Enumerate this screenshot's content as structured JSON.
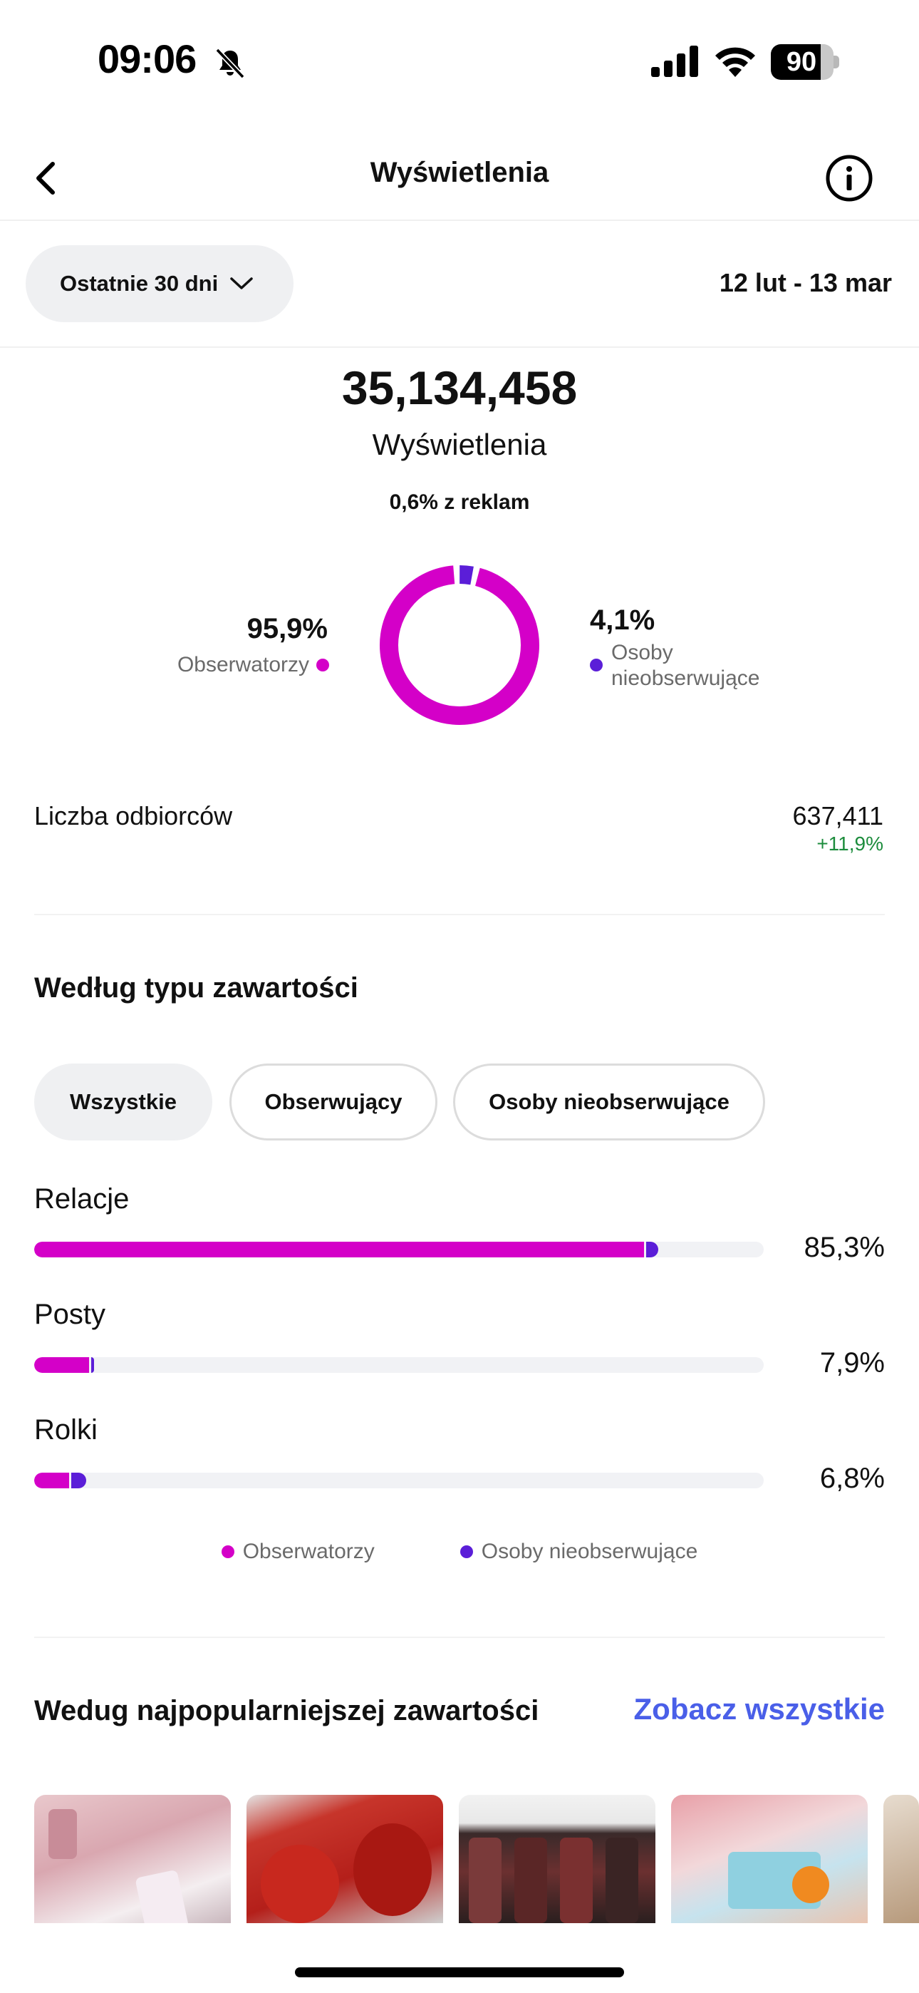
{
  "status_bar": {
    "time": "09:06",
    "battery_level": "90",
    "icons": [
      "bell-slash-icon",
      "cellular-signal-icon",
      "wifi-icon",
      "battery-icon"
    ]
  },
  "nav": {
    "title": "Wyświetlenia",
    "back_icon": "chevron-left-icon",
    "info_icon": "info-circle-icon"
  },
  "filter": {
    "period_label": "Ostatnie 30 dni",
    "date_range": "12 lut - 13 mar"
  },
  "summary": {
    "total_views": "35,134,458",
    "views_label": "Wyświetlenia",
    "ads_share": "0,6% z reklam",
    "followers_pct": "95,9%",
    "followers_label": "Obserwatorzy",
    "nonfollowers_pct": "4,1%",
    "nonfollowers_label": "Osoby nieobserwujące",
    "followers_fraction": 0.959,
    "nonfollowers_fraction": 0.041
  },
  "reach": {
    "label": "Liczba odbiorców",
    "value": "637,411",
    "change": "+11,9%"
  },
  "content_type": {
    "heading": "Według typu zawartości",
    "chips": [
      {
        "label": "Wszystkie",
        "selected": true
      },
      {
        "label": "Obserwujący",
        "selected": false
      },
      {
        "label": "Osoby nieobserwujące",
        "selected": false
      }
    ],
    "rows": [
      {
        "label": "Relacje",
        "value": "85,3%",
        "followers_pct": 83.6,
        "nonfollowers_pct": 1.7
      },
      {
        "label": "Posty",
        "value": "7,9%",
        "followers_pct": 7.5,
        "nonfollowers_pct": 0.4
      },
      {
        "label": "Rolki",
        "value": "6,8%",
        "followers_pct": 4.8,
        "nonfollowers_pct": 2.0
      }
    ],
    "legend": {
      "followers": "Obserwatorzy",
      "nonfollowers": "Osoby nieobserwujące"
    }
  },
  "popular": {
    "heading": "Wedug najpopularniejszej zawartości",
    "see_all": "Zobacz wszystkie",
    "thumbnails": [
      "post-thumbnail-1",
      "post-thumbnail-2",
      "post-thumbnail-3",
      "post-thumbnail-4",
      "post-thumbnail-5"
    ]
  },
  "colors": {
    "followers": "#d400c8",
    "nonfollowers": "#5b1ed8",
    "link": "#4a5fe8",
    "positive": "#1c8c3c"
  }
}
